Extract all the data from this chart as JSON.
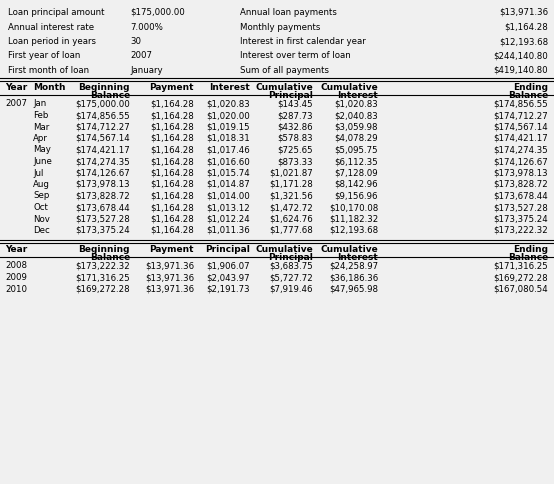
{
  "summary_labels": [
    "Loan principal amount",
    "Annual interest rate",
    "Loan period in years",
    "First year of loan",
    "First month of loan"
  ],
  "summary_values": [
    "$175,000.00",
    "7.000%",
    "30",
    "2007",
    "January"
  ],
  "summary_labels2": [
    "Annual loan payments",
    "Monthly payments",
    "Interest in first calendar year",
    "Interest over term of loan",
    "Sum of all payments"
  ],
  "summary_values2": [
    "$13,971.36",
    "$1,164.28",
    "$12,193.68",
    "$244,140.80",
    "$419,140.80"
  ],
  "monthly_data": [
    [
      "2007",
      "Jan",
      "$175,000.00",
      "$1,164.28",
      "$1,020.83",
      "$143.45",
      "$1,020.83",
      "$174,856.55"
    ],
    [
      "",
      "Feb",
      "$174,856.55",
      "$1,164.28",
      "$1,020.00",
      "$287.73",
      "$2,040.83",
      "$174,712.27"
    ],
    [
      "",
      "Mar",
      "$174,712.27",
      "$1,164.28",
      "$1,019.15",
      "$432.86",
      "$3,059.98",
      "$174,567.14"
    ],
    [
      "",
      "Apr",
      "$174,567.14",
      "$1,164.28",
      "$1,018.31",
      "$578.83",
      "$4,078.29",
      "$174,421.17"
    ],
    [
      "",
      "May",
      "$174,421.17",
      "$1,164.28",
      "$1,017.46",
      "$725.65",
      "$5,095.75",
      "$174,274.35"
    ],
    [
      "",
      "June",
      "$174,274.35",
      "$1,164.28",
      "$1,016.60",
      "$873.33",
      "$6,112.35",
      "$174,126.67"
    ],
    [
      "",
      "Jul",
      "$174,126.67",
      "$1,164.28",
      "$1,015.74",
      "$1,021.87",
      "$7,128.09",
      "$173,978.13"
    ],
    [
      "",
      "Aug",
      "$173,978.13",
      "$1,164.28",
      "$1,014.87",
      "$1,171.28",
      "$8,142.96",
      "$173,828.72"
    ],
    [
      "",
      "Sep",
      "$173,828.72",
      "$1,164.28",
      "$1,014.00",
      "$1,321.56",
      "$9,156.96",
      "$173,678.44"
    ],
    [
      "",
      "Oct",
      "$173,678.44",
      "$1,164.28",
      "$1,013.12",
      "$1,472.72",
      "$10,170.08",
      "$173,527.28"
    ],
    [
      "",
      "Nov",
      "$173,527.28",
      "$1,164.28",
      "$1,012.24",
      "$1,624.76",
      "$11,182.32",
      "$173,375.24"
    ],
    [
      "",
      "Dec",
      "$173,375.24",
      "$1,164.28",
      "$1,011.36",
      "$1,777.68",
      "$12,193.68",
      "$173,222.32"
    ]
  ],
  "annual_data": [
    [
      "2008",
      "$173,222.32",
      "$13,971.36",
      "$1,906.07",
      "$3,683.75",
      "$24,258.97",
      "$171,316.25"
    ],
    [
      "2009",
      "$171,316.25",
      "$13,971.36",
      "$2,043.97",
      "$5,727.72",
      "$36,186.36",
      "$169,272.28"
    ],
    [
      "2010",
      "$169,272.28",
      "$13,971.36",
      "$2,191.73",
      "$7,919.46",
      "$47,965.98",
      "$167,080.54"
    ]
  ],
  "bg_color": "#f0f0f0",
  "text_color": "#000000",
  "line_color": "#000000",
  "font_size": 6.2,
  "header_font_size": 6.5
}
